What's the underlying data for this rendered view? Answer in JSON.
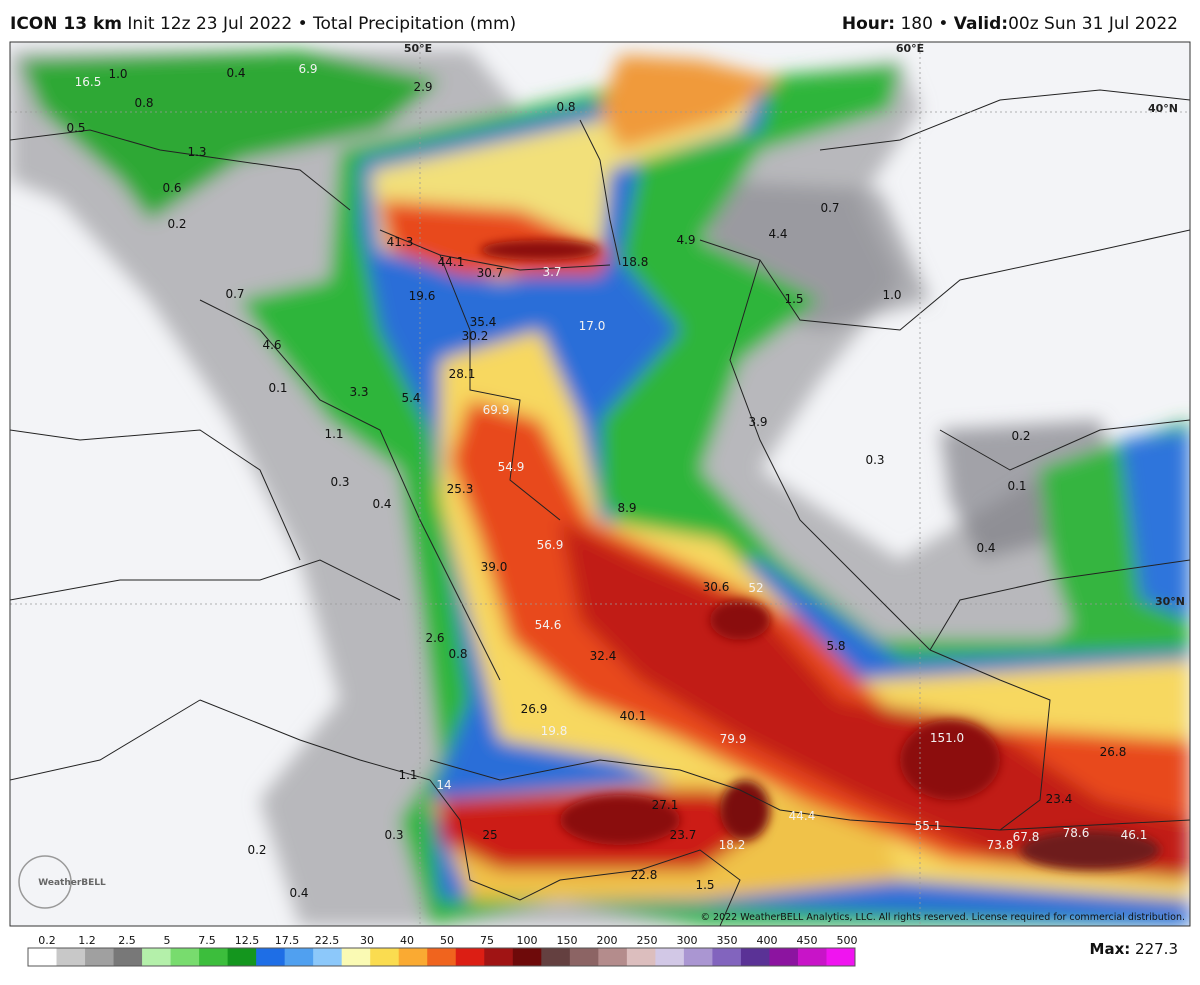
{
  "header": {
    "model": "ICON 13 km",
    "init": "Init 12z 23 Jul 2022",
    "separator": "•",
    "field": "Total Precipitation (mm)",
    "hour_label": "Hour:",
    "hour": "180",
    "valid_label": "Valid:",
    "valid": "00z Sun 31 Jul 2022"
  },
  "map": {
    "grid_labels": [
      "50°E",
      "60°E",
      "40°N",
      "30°N"
    ],
    "values": [
      "16.5",
      "1.0",
      "0.4",
      "6.9",
      "2.9",
      "0.8",
      "0.8",
      "0.5",
      "1.3",
      "0.6",
      "0.2",
      "41.3",
      "44.1",
      "30.7",
      "3.7",
      "18.8",
      "4.9",
      "4.4",
      "0.7",
      "0.7",
      "19.6",
      "1.5",
      "1.0",
      "35.4",
      "17.0",
      "30.2",
      "4.6",
      "28.1",
      "0.1",
      "3.3",
      "5.4",
      "69.9",
      "3.9",
      "1.1",
      "0.2",
      "54.9",
      "0.3",
      "0.3",
      "25.3",
      "0.1",
      "0.4",
      "8.9",
      "56.9",
      "0.4",
      "39.0",
      "30.6",
      "52",
      "54.6",
      "2.6",
      "5.8",
      "0.8",
      "32.4",
      "26.9",
      "40.1",
      "151.0",
      "19.8",
      "79.9",
      "26.8",
      "1.1",
      "14",
      "23.4",
      "27.1",
      "44.4",
      "55.1",
      "0.3",
      "78.6",
      "46.1",
      "67.8",
      "73.8",
      "23.7",
      "18.2",
      "0.2",
      "22.8",
      "0.4",
      "1.5",
      "25"
    ],
    "copyright": "© 2022 WeatherBELL Analytics, LLC. All rights reserved. License required for commercial distribution.",
    "logo": "WeatherBELL"
  },
  "colorbar": {
    "ticks": [
      0.2,
      1.2,
      2.5,
      5,
      7.5,
      12.5,
      17.5,
      22.5,
      30,
      40,
      50,
      75,
      100,
      150,
      200,
      250,
      300,
      350,
      400,
      450,
      500
    ]
  },
  "max_label": "Max:",
  "max": "227.3"
}
